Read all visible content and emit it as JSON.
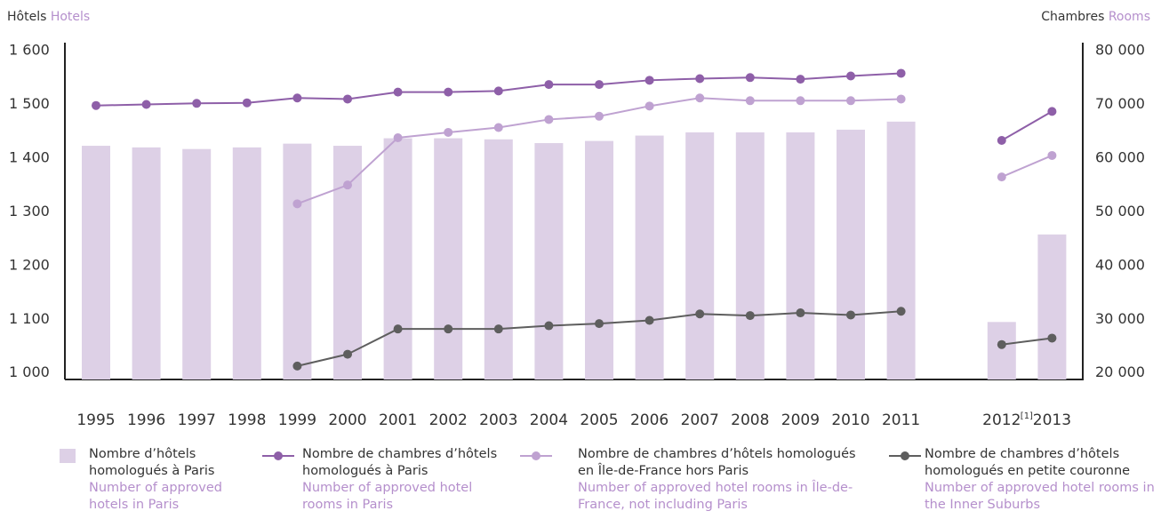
{
  "chart_data": {
    "type": "bar-line",
    "y_label": {
      "fr": "Hôtels",
      "en": "Hotels"
    },
    "y2_label": {
      "fr": "Chambres",
      "en": "Rooms"
    },
    "categories": [
      "1995",
      "1996",
      "1997",
      "1998",
      "1999",
      "2000",
      "2001",
      "2002",
      "2003",
      "2004",
      "2005",
      "2006",
      "2007",
      "2008",
      "2009",
      "2010",
      "2011",
      null,
      "2012",
      "2013"
    ],
    "annotations": [
      {
        "text": "[1]"
      }
    ],
    "ylim": [
      988,
      1615
    ],
    "yticks": [
      {
        "value": 1000,
        "label": "1 000"
      },
      {
        "value": 1100,
        "label": "1 100"
      },
      {
        "value": 1200,
        "label": "1 200"
      },
      {
        "value": 1300,
        "label": "1 300"
      },
      {
        "value": 1400,
        "label": "1 400"
      },
      {
        "value": 1500,
        "label": "1 500"
      },
      {
        "value": 1600,
        "label": "1 600"
      }
    ],
    "y2lim": [
      18800,
      81500
    ],
    "y2ticks": [
      {
        "value": 20000,
        "label": "20 000"
      },
      {
        "value": 30000,
        "label": "30 000"
      },
      {
        "value": 40000,
        "label": "40 000"
      },
      {
        "value": 50000,
        "label": "50 000"
      },
      {
        "value": 60000,
        "label": "60 000"
      },
      {
        "value": 70000,
        "label": "70 000"
      },
      {
        "value": 80000,
        "label": "80 000"
      }
    ],
    "series": [
      {
        "type": "bar",
        "name": "Nombre d’hôtels homologués à Paris",
        "name_en": "Number of approved hotels in Paris",
        "color": "#ddd0e6",
        "values": [
          1423,
          1420,
          1417,
          1420,
          1427,
          1423,
          1437,
          1437,
          1435,
          1428,
          1432,
          1442,
          1448,
          1448,
          1448,
          1453,
          1468,
          null,
          1095,
          1258
        ]
      },
      {
        "type": "line",
        "axis": "y2",
        "name": "Nombre de chambres d’hôtels homologués à Paris",
        "name_en": "Number of approved hotel rooms in Paris",
        "color": "#8e5fa8",
        "values": [
          69800,
          70000,
          70200,
          70300,
          71200,
          71000,
          72300,
          72300,
          72500,
          73700,
          73700,
          74500,
          74800,
          75000,
          74700,
          75300,
          75800,
          null,
          63300,
          68700
        ]
      },
      {
        "type": "line",
        "axis": "y2",
        "name": "Nombre de chambres d’hôtels homologués en Île-de-France hors Paris",
        "name_en": "Number of approved hotel rooms in Île-de-France, not including Paris",
        "color": "#bfa2d1",
        "values": [
          null,
          null,
          null,
          null,
          51500,
          55000,
          63800,
          64800,
          65700,
          67200,
          67800,
          69700,
          71200,
          70700,
          70700,
          70700,
          71000,
          null,
          56500,
          60500
        ]
      },
      {
        "type": "line",
        "axis": "y2",
        "name": "Nombre de chambres d’hôtels homologués en petite couronne",
        "name_en": "Number of approved hotel rooms in the Inner Suburbs",
        "color": "#5e5e5e",
        "values": [
          null,
          null,
          null,
          null,
          21300,
          23500,
          28200,
          28200,
          28200,
          28800,
          29200,
          29800,
          31000,
          30700,
          31200,
          30800,
          31500,
          null,
          25300,
          26500
        ]
      }
    ]
  }
}
